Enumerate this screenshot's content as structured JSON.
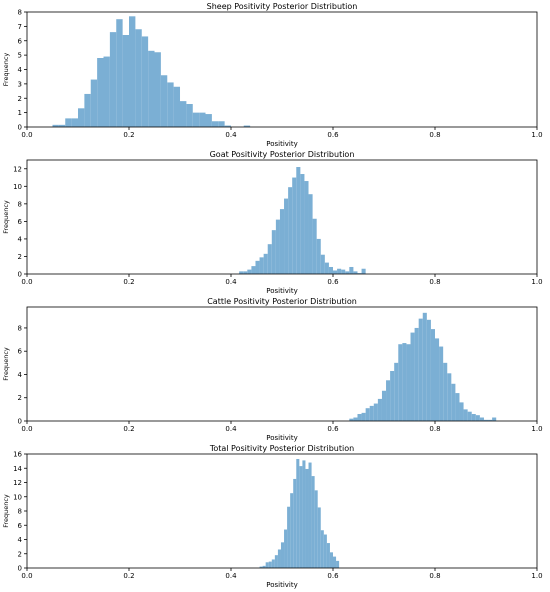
{
  "chart_data": [
    {
      "type": "bar",
      "title": "Sheep Positivity Posterior Distribution",
      "xlabel": "Positivity",
      "ylabel": "Frequency",
      "xlim": [
        0.0,
        1.0
      ],
      "ylim": [
        0,
        8
      ],
      "xticks": [
        "0.0",
        "0.2",
        "0.4",
        "0.6",
        "0.8",
        "1.0"
      ],
      "yticks": [
        "0",
        "1",
        "2",
        "3",
        "4",
        "5",
        "6",
        "7",
        "8"
      ],
      "bin_width": 0.0125,
      "bins": [
        [
          0.05,
          0.15
        ],
        [
          0.0625,
          0.15
        ],
        [
          0.075,
          0.6
        ],
        [
          0.0875,
          0.6
        ],
        [
          0.1,
          1.3
        ],
        [
          0.1125,
          2.3
        ],
        [
          0.125,
          3.3
        ],
        [
          0.1375,
          4.8
        ],
        [
          0.15,
          4.9
        ],
        [
          0.1625,
          6.6
        ],
        [
          0.175,
          7.5
        ],
        [
          0.1875,
          6.4
        ],
        [
          0.2,
          7.7
        ],
        [
          0.2125,
          6.8
        ],
        [
          0.225,
          6.3
        ],
        [
          0.2375,
          5.3
        ],
        [
          0.25,
          5.2
        ],
        [
          0.2625,
          3.6
        ],
        [
          0.275,
          3.1
        ],
        [
          0.2875,
          2.8
        ],
        [
          0.3,
          1.8
        ],
        [
          0.3125,
          1.6
        ],
        [
          0.325,
          1.0
        ],
        [
          0.3375,
          1.0
        ],
        [
          0.35,
          0.9
        ],
        [
          0.3625,
          0.4
        ],
        [
          0.375,
          0.4
        ],
        [
          0.3875,
          0.1
        ],
        [
          0.425,
          0.1
        ]
      ]
    },
    {
      "type": "bar",
      "title": "Goat Positivity Posterior Distribution",
      "xlabel": "Positivity",
      "ylabel": "Frequency",
      "xlim": [
        0.0,
        1.0
      ],
      "ylim": [
        0,
        13
      ],
      "xticks": [
        "0.0",
        "0.2",
        "0.4",
        "0.6",
        "0.8",
        "1.0"
      ],
      "yticks": [
        "0",
        "2",
        "4",
        "6",
        "8",
        "10",
        "12"
      ],
      "bin_width": 0.008,
      "bins": [
        [
          0.416,
          0.3
        ],
        [
          0.424,
          0.3
        ],
        [
          0.432,
          0.5
        ],
        [
          0.44,
          0.9
        ],
        [
          0.448,
          1.5
        ],
        [
          0.456,
          1.9
        ],
        [
          0.464,
          2.3
        ],
        [
          0.472,
          3.4
        ],
        [
          0.48,
          5.0
        ],
        [
          0.488,
          6.2
        ],
        [
          0.496,
          7.4
        ],
        [
          0.504,
          8.6
        ],
        [
          0.512,
          9.9
        ],
        [
          0.52,
          11.0
        ],
        [
          0.528,
          12.2
        ],
        [
          0.536,
          11.4
        ],
        [
          0.544,
          10.6
        ],
        [
          0.552,
          9.1
        ],
        [
          0.56,
          6.3
        ],
        [
          0.568,
          4.0
        ],
        [
          0.576,
          2.2
        ],
        [
          0.584,
          1.3
        ],
        [
          0.592,
          0.8
        ],
        [
          0.6,
          0.4
        ],
        [
          0.608,
          0.6
        ],
        [
          0.616,
          0.5
        ],
        [
          0.624,
          0.3
        ],
        [
          0.632,
          0.8
        ],
        [
          0.64,
          0.3
        ],
        [
          0.648,
          0.1
        ],
        [
          0.656,
          0.6
        ]
      ]
    },
    {
      "type": "bar",
      "title": "Cattle Positivity Posterior Distribution",
      "xlabel": "Positivity",
      "ylabel": "Frequency",
      "xlim": [
        0.0,
        1.0
      ],
      "ylim": [
        0,
        9.8
      ],
      "xticks": [
        "0.0",
        "0.2",
        "0.4",
        "0.6",
        "0.8",
        "1.0"
      ],
      "yticks": [
        "0",
        "2",
        "4",
        "6",
        "8"
      ],
      "bin_width": 0.008,
      "bins": [
        [
          0.632,
          0.2
        ],
        [
          0.64,
          0.3
        ],
        [
          0.648,
          0.6
        ],
        [
          0.656,
          0.7
        ],
        [
          0.664,
          1.1
        ],
        [
          0.672,
          1.3
        ],
        [
          0.68,
          1.5
        ],
        [
          0.688,
          1.9
        ],
        [
          0.696,
          2.6
        ],
        [
          0.704,
          3.5
        ],
        [
          0.712,
          4.3
        ],
        [
          0.72,
          5.0
        ],
        [
          0.728,
          6.6
        ],
        [
          0.736,
          6.7
        ],
        [
          0.744,
          6.6
        ],
        [
          0.752,
          7.6
        ],
        [
          0.76,
          8.0
        ],
        [
          0.768,
          8.8
        ],
        [
          0.776,
          9.3
        ],
        [
          0.784,
          8.7
        ],
        [
          0.792,
          7.9
        ],
        [
          0.8,
          7.1
        ],
        [
          0.808,
          6.4
        ],
        [
          0.816,
          5.0
        ],
        [
          0.824,
          4.1
        ],
        [
          0.832,
          3.2
        ],
        [
          0.84,
          2.4
        ],
        [
          0.848,
          1.6
        ],
        [
          0.856,
          1.0
        ],
        [
          0.864,
          0.8
        ],
        [
          0.872,
          0.6
        ],
        [
          0.88,
          0.5
        ],
        [
          0.888,
          0.3
        ],
        [
          0.896,
          0.1
        ],
        [
          0.904,
          0.1
        ],
        [
          0.912,
          0.3
        ]
      ]
    },
    {
      "type": "bar",
      "title": "Total Positivity Posterior Distribution",
      "xlabel": "Positivity",
      "ylabel": "Frequency",
      "xlim": [
        0.0,
        1.0
      ],
      "ylim": [
        0,
        16
      ],
      "xticks": [
        "0.0",
        "0.2",
        "0.4",
        "0.6",
        "0.8",
        "1.0"
      ],
      "yticks": [
        "0",
        "2",
        "4",
        "6",
        "8",
        "10",
        "12",
        "14",
        "16"
      ],
      "bin_width": 0.006,
      "bins": [
        [
          0.456,
          0.2
        ],
        [
          0.462,
          0.3
        ],
        [
          0.468,
          0.8
        ],
        [
          0.474,
          0.9
        ],
        [
          0.48,
          1.2
        ],
        [
          0.486,
          1.8
        ],
        [
          0.492,
          2.6
        ],
        [
          0.498,
          3.6
        ],
        [
          0.504,
          5.4
        ],
        [
          0.51,
          8.6
        ],
        [
          0.516,
          10.5
        ],
        [
          0.522,
          12.5
        ],
        [
          0.528,
          15.3
        ],
        [
          0.534,
          14.3
        ],
        [
          0.54,
          15.1
        ],
        [
          0.546,
          13.9
        ],
        [
          0.552,
          14.8
        ],
        [
          0.558,
          12.9
        ],
        [
          0.564,
          10.9
        ],
        [
          0.57,
          8.5
        ],
        [
          0.576,
          5.3
        ],
        [
          0.582,
          4.7
        ],
        [
          0.588,
          3.5
        ],
        [
          0.594,
          2.2
        ],
        [
          0.6,
          1.6
        ],
        [
          0.606,
          1.0
        ]
      ]
    }
  ],
  "style": {
    "bar_color": "#7bafd4",
    "axis_color": "#000000"
  }
}
